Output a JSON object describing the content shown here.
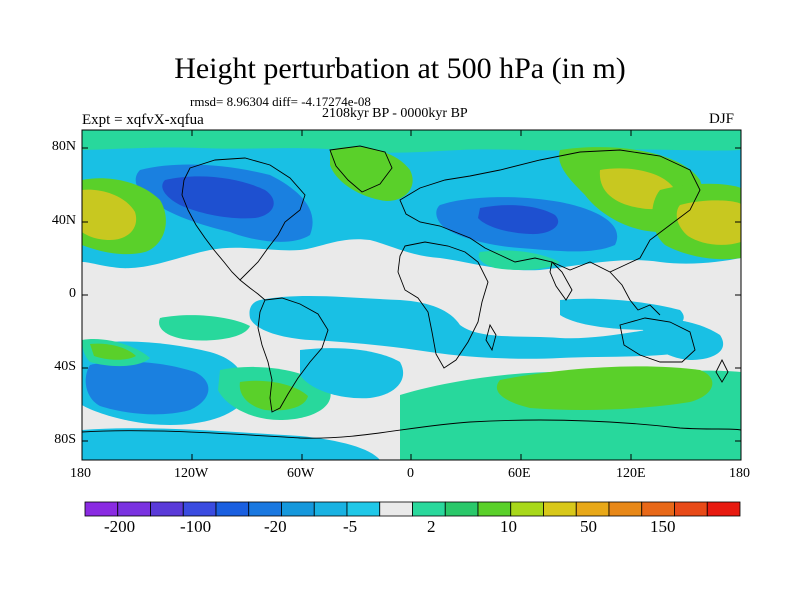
{
  "header": {
    "title": "Height perturbation at 500 hPa (in m)",
    "stats": "rmsd= 8.96304 diff= -4.17274e-08",
    "period": "2108kyr BP - 0000kyr BP",
    "experiment": "Expt = xqfvX-xqfua",
    "season": "DJF"
  },
  "axes": {
    "y_ticks": [
      "80N",
      "40N",
      "0",
      "40S",
      "80S"
    ],
    "x_ticks": [
      "180",
      "120W",
      "60W",
      "0",
      "60E",
      "120E",
      "180"
    ]
  },
  "colorbar": {
    "labels": [
      "-200",
      "-100",
      "-20",
      "-5",
      "2",
      "10",
      "50",
      "150"
    ],
    "colors": [
      "#8a2be2",
      "#7a32e0",
      "#5a3ad8",
      "#3a4be0",
      "#1a5fe0",
      "#1a78e0",
      "#1598dc",
      "#19b2e2",
      "#20c8e8",
      "#eaeaea",
      "#2ad89c",
      "#2ac86a",
      "#5ad02a",
      "#a8d81a",
      "#d8c81a",
      "#e8a818",
      "#e88818",
      "#e86818",
      "#e84a18",
      "#e81a10"
    ]
  },
  "map_colors": {
    "ocean_bg": "#eaeaea",
    "light_blue": "#19c0e4",
    "mid_blue": "#1a80e0",
    "dark_blue": "#1e50d0",
    "teal": "#28d89c",
    "green": "#5ad02a",
    "yellow": "#c8c820",
    "coast": "#000000"
  }
}
